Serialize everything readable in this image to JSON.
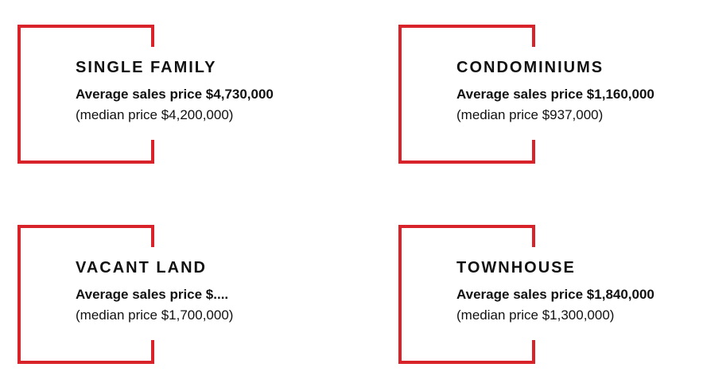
{
  "accent_color": "#d8232a",
  "cards": [
    {
      "title": "SINGLE FAMILY",
      "average": "Average sales price $4,730,000",
      "median": "(median price $4,200,000)"
    },
    {
      "title": "CONDOMINIUMS",
      "average": "Average sales price $1,160,000",
      "median": "(median price $937,000)"
    },
    {
      "title": "VACANT LAND",
      "average": "Average sales price $....",
      "median": "(median price $1,700,000)"
    },
    {
      "title": "TOWNHOUSE",
      "average": "Average sales price $1,840,000",
      "median": "(median price $1,300,000)"
    }
  ]
}
